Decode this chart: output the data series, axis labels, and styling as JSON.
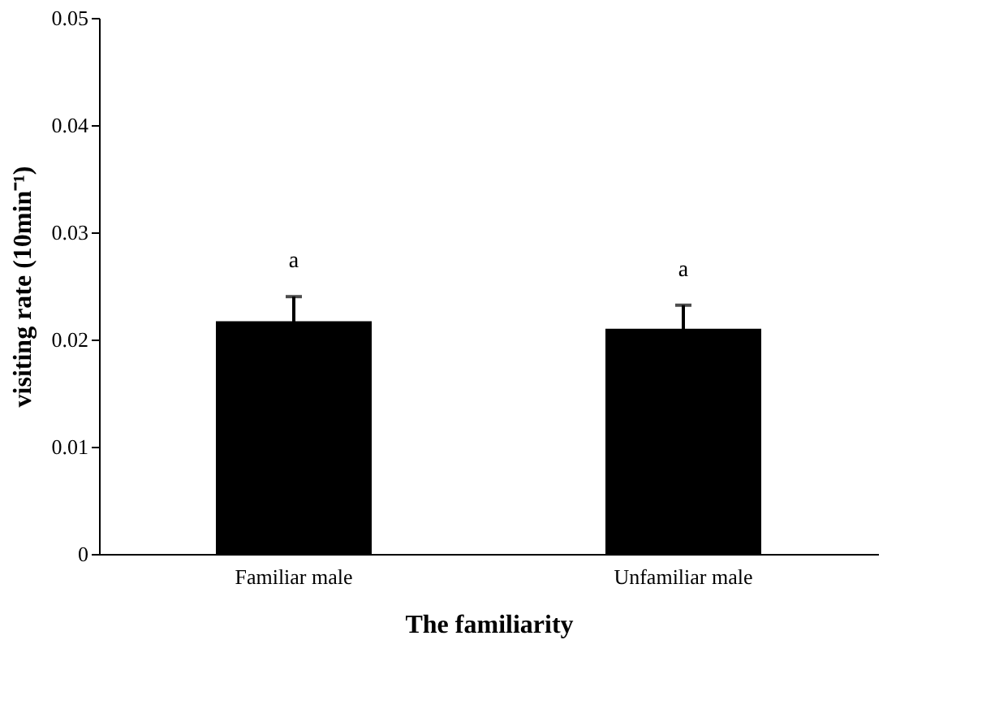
{
  "chart_data": {
    "type": "bar",
    "xlabel": "The familiarity",
    "ylabel": "visiting rate (10min⁻¹)",
    "categories": [
      "Familiar male",
      "Unfamiliar male"
    ],
    "values": [
      0.0217,
      0.021
    ],
    "errors": [
      0.0023,
      0.0022
    ],
    "color": "#000000",
    "ylim": [
      0,
      0.05
    ],
    "yticks": [
      {
        "value": 0,
        "label": "0"
      },
      0.01,
      0.02,
      0.03,
      0.04,
      0.05
    ],
    "annotations": [
      "a",
      "a"
    ],
    "grid": false
  }
}
